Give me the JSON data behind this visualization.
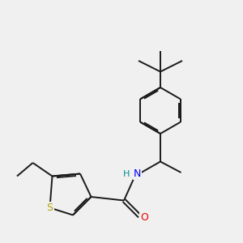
{
  "bg_color": "#f0f0f0",
  "bond_color": "#1a1a1a",
  "bond_width": 1.4,
  "atom_colors": {
    "S": "#b8a000",
    "N": "#0000ee",
    "O": "#ee0000",
    "H": "#009090"
  },
  "font_size_atom": 8.5
}
